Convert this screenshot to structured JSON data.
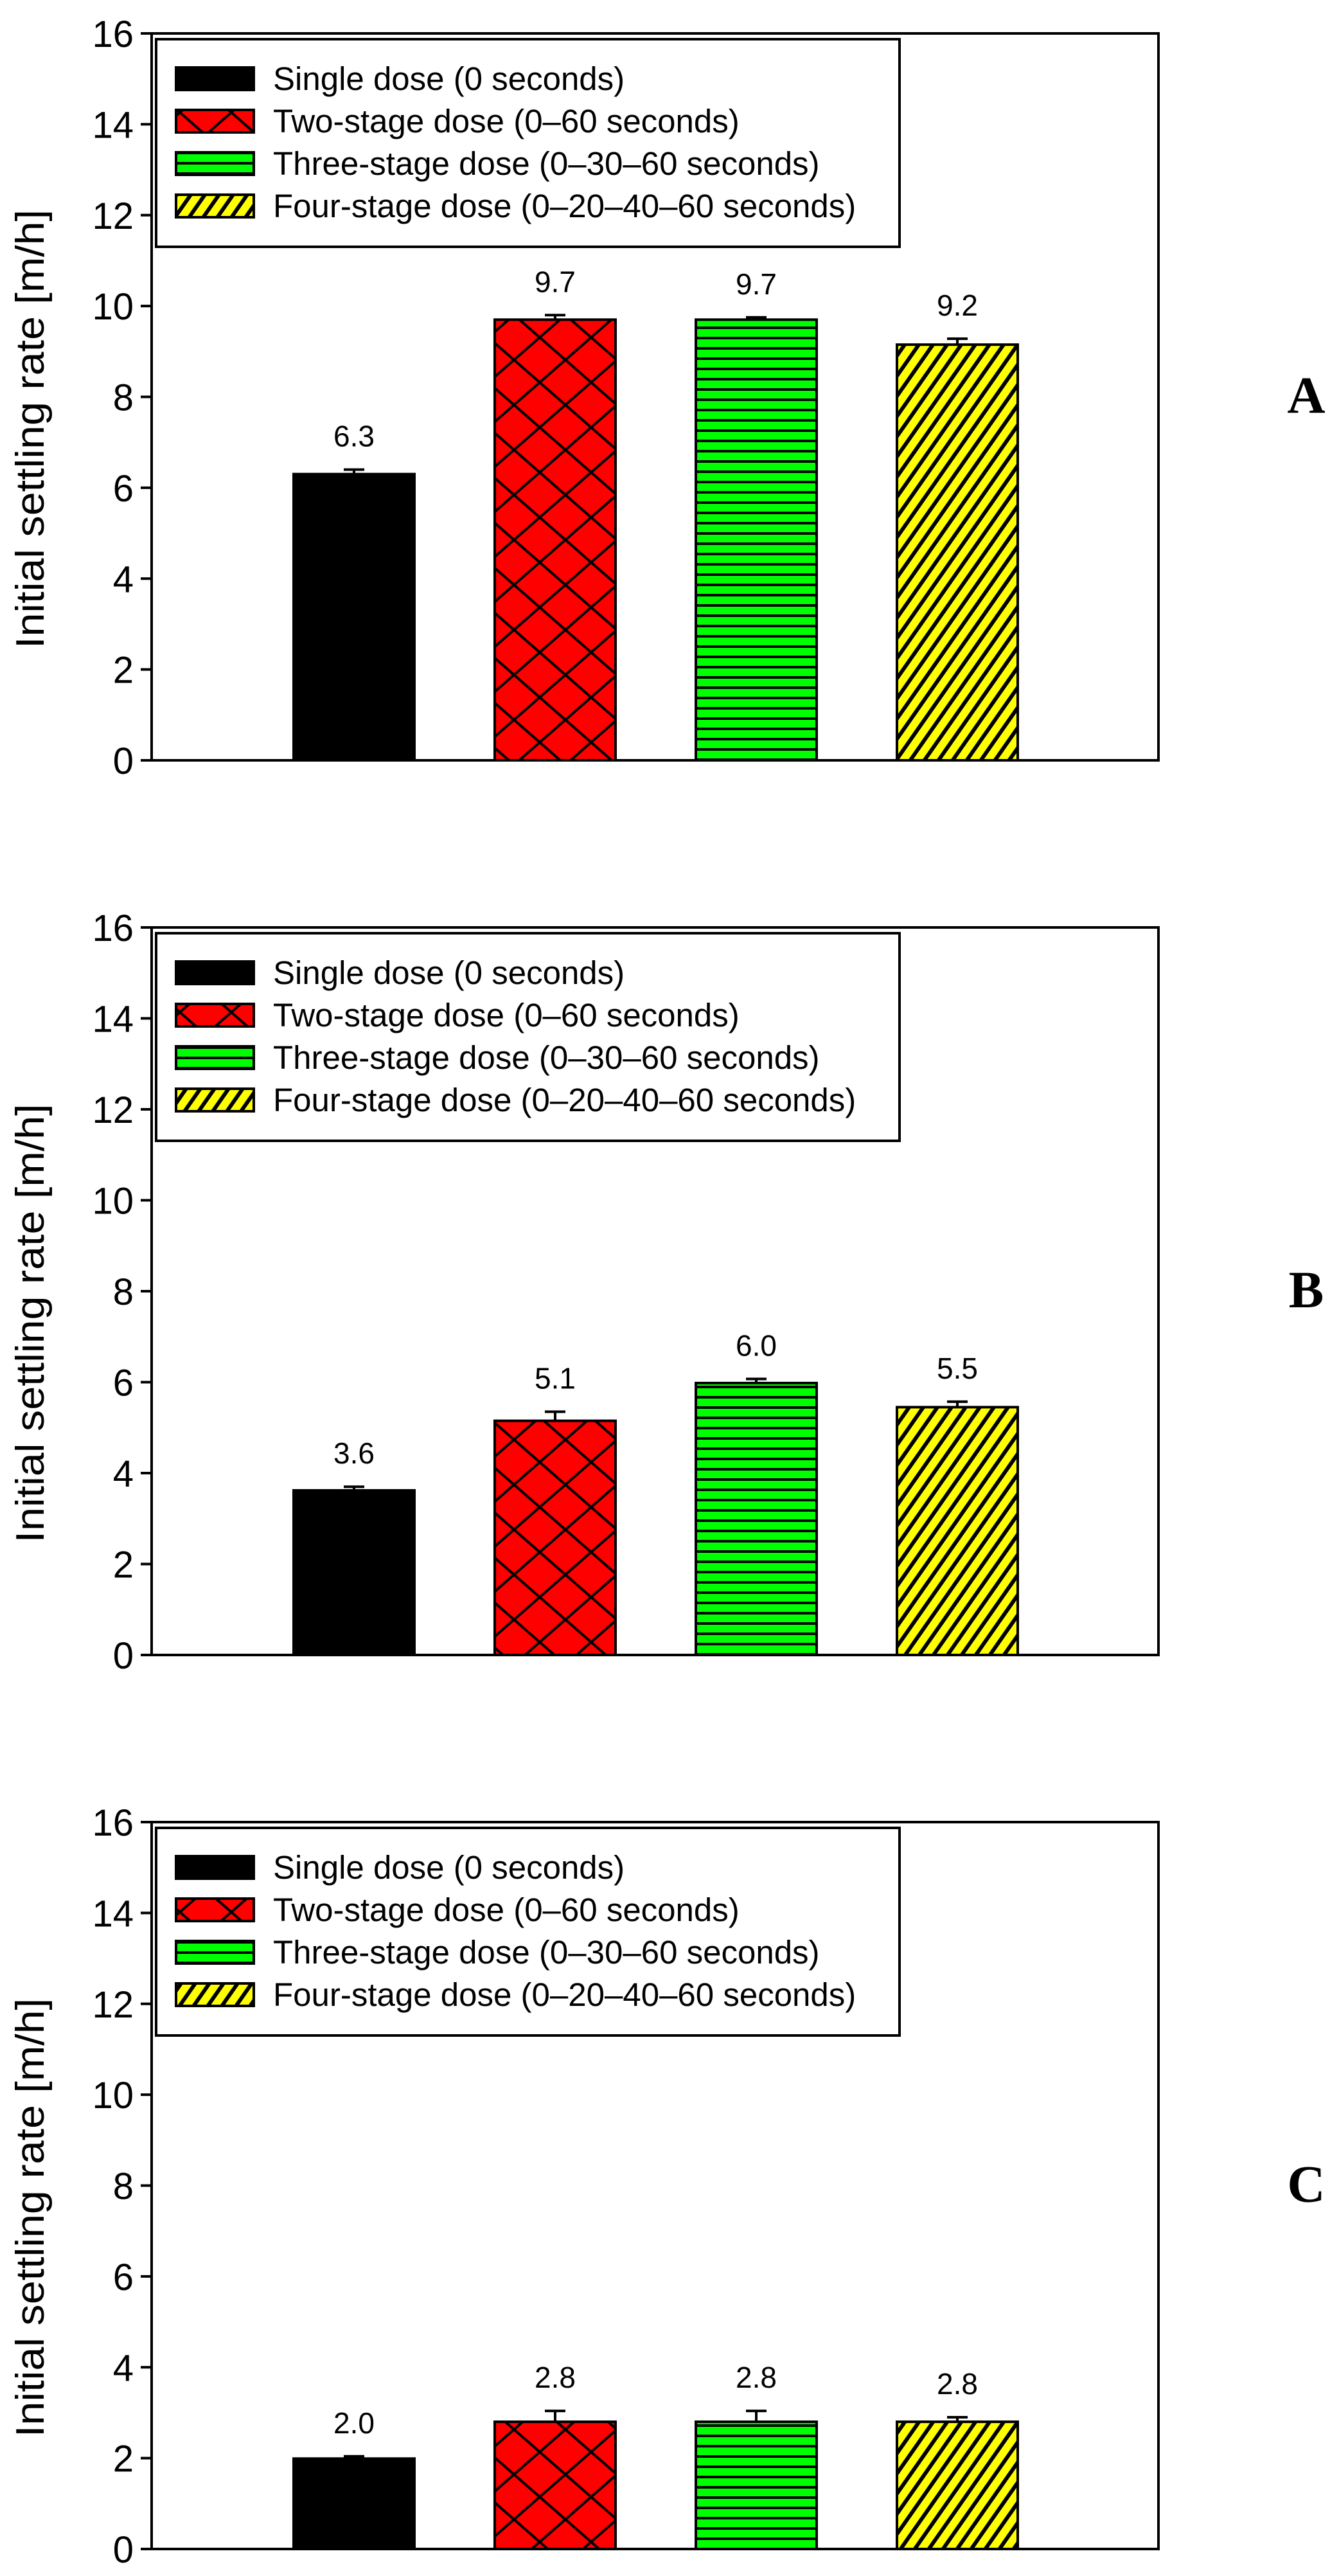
{
  "chart_data": [
    {
      "type": "bar",
      "panel_label": "A",
      "ylabel": "Initial settling rate [m/h]",
      "ylim": [
        0,
        16
      ],
      "yticks": [
        "0",
        "2",
        "4",
        "6",
        "8",
        "10",
        "12",
        "14",
        "16"
      ],
      "categories": [
        "Single dose (0 seconds)",
        "Two-stage dose (0–60 seconds)",
        "Three-stage dose (0–30–60 seconds)",
        "Four-stage dose (0–20–40–60 seconds)"
      ],
      "values": [
        6.3,
        9.7,
        9.7,
        9.15
      ],
      "errors": [
        0.1,
        0.1,
        0.05,
        0.13
      ],
      "data_labels": [
        "6.3",
        "9.7",
        "9.7",
        "9.2"
      ],
      "legend_position": "top-left"
    },
    {
      "type": "bar",
      "panel_label": "B",
      "ylabel": "Initial settling rate [m/h]",
      "ylim": [
        0,
        16
      ],
      "yticks": [
        "0",
        "2",
        "4",
        "6",
        "8",
        "10",
        "12",
        "14",
        "16"
      ],
      "categories": [
        "Single dose (0 seconds)",
        "Two-stage dose (0–60 seconds)",
        "Three-stage dose (0–30–60 seconds)",
        "Four-stage dose (0–20–40–60 seconds)"
      ],
      "values": [
        3.62,
        5.15,
        5.98,
        5.45
      ],
      "errors": [
        0.08,
        0.2,
        0.09,
        0.12
      ],
      "data_labels": [
        "3.6",
        "5.1",
        "6.0",
        "5.5"
      ],
      "legend_position": "top-left"
    },
    {
      "type": "bar",
      "panel_label": "C",
      "ylabel": "Initial settling rate [m/h]",
      "ylim": [
        0,
        16
      ],
      "yticks": [
        "0",
        "2",
        "4",
        "6",
        "8",
        "10",
        "12",
        "14",
        "16"
      ],
      "categories": [
        "Single dose (0 seconds)",
        "Two-stage dose (0–60 seconds)",
        "Three-stage dose (0–30–60 seconds)",
        "Four-stage dose (0–20–40–60 seconds)"
      ],
      "values": [
        1.99,
        2.8,
        2.8,
        2.8
      ],
      "errors": [
        0.05,
        0.24,
        0.24,
        0.1
      ],
      "data_labels": [
        "2.0",
        "2.8",
        "2.8",
        "2.8"
      ],
      "legend_position": "top-left"
    }
  ],
  "series_styles": [
    {
      "fill": "#000000",
      "pattern": "solid"
    },
    {
      "fill": "#ff0000",
      "pattern": "crosshatch"
    },
    {
      "fill": "#00ff00",
      "pattern": "horizontal"
    },
    {
      "fill": "#ffff00",
      "pattern": "diagonal"
    }
  ]
}
